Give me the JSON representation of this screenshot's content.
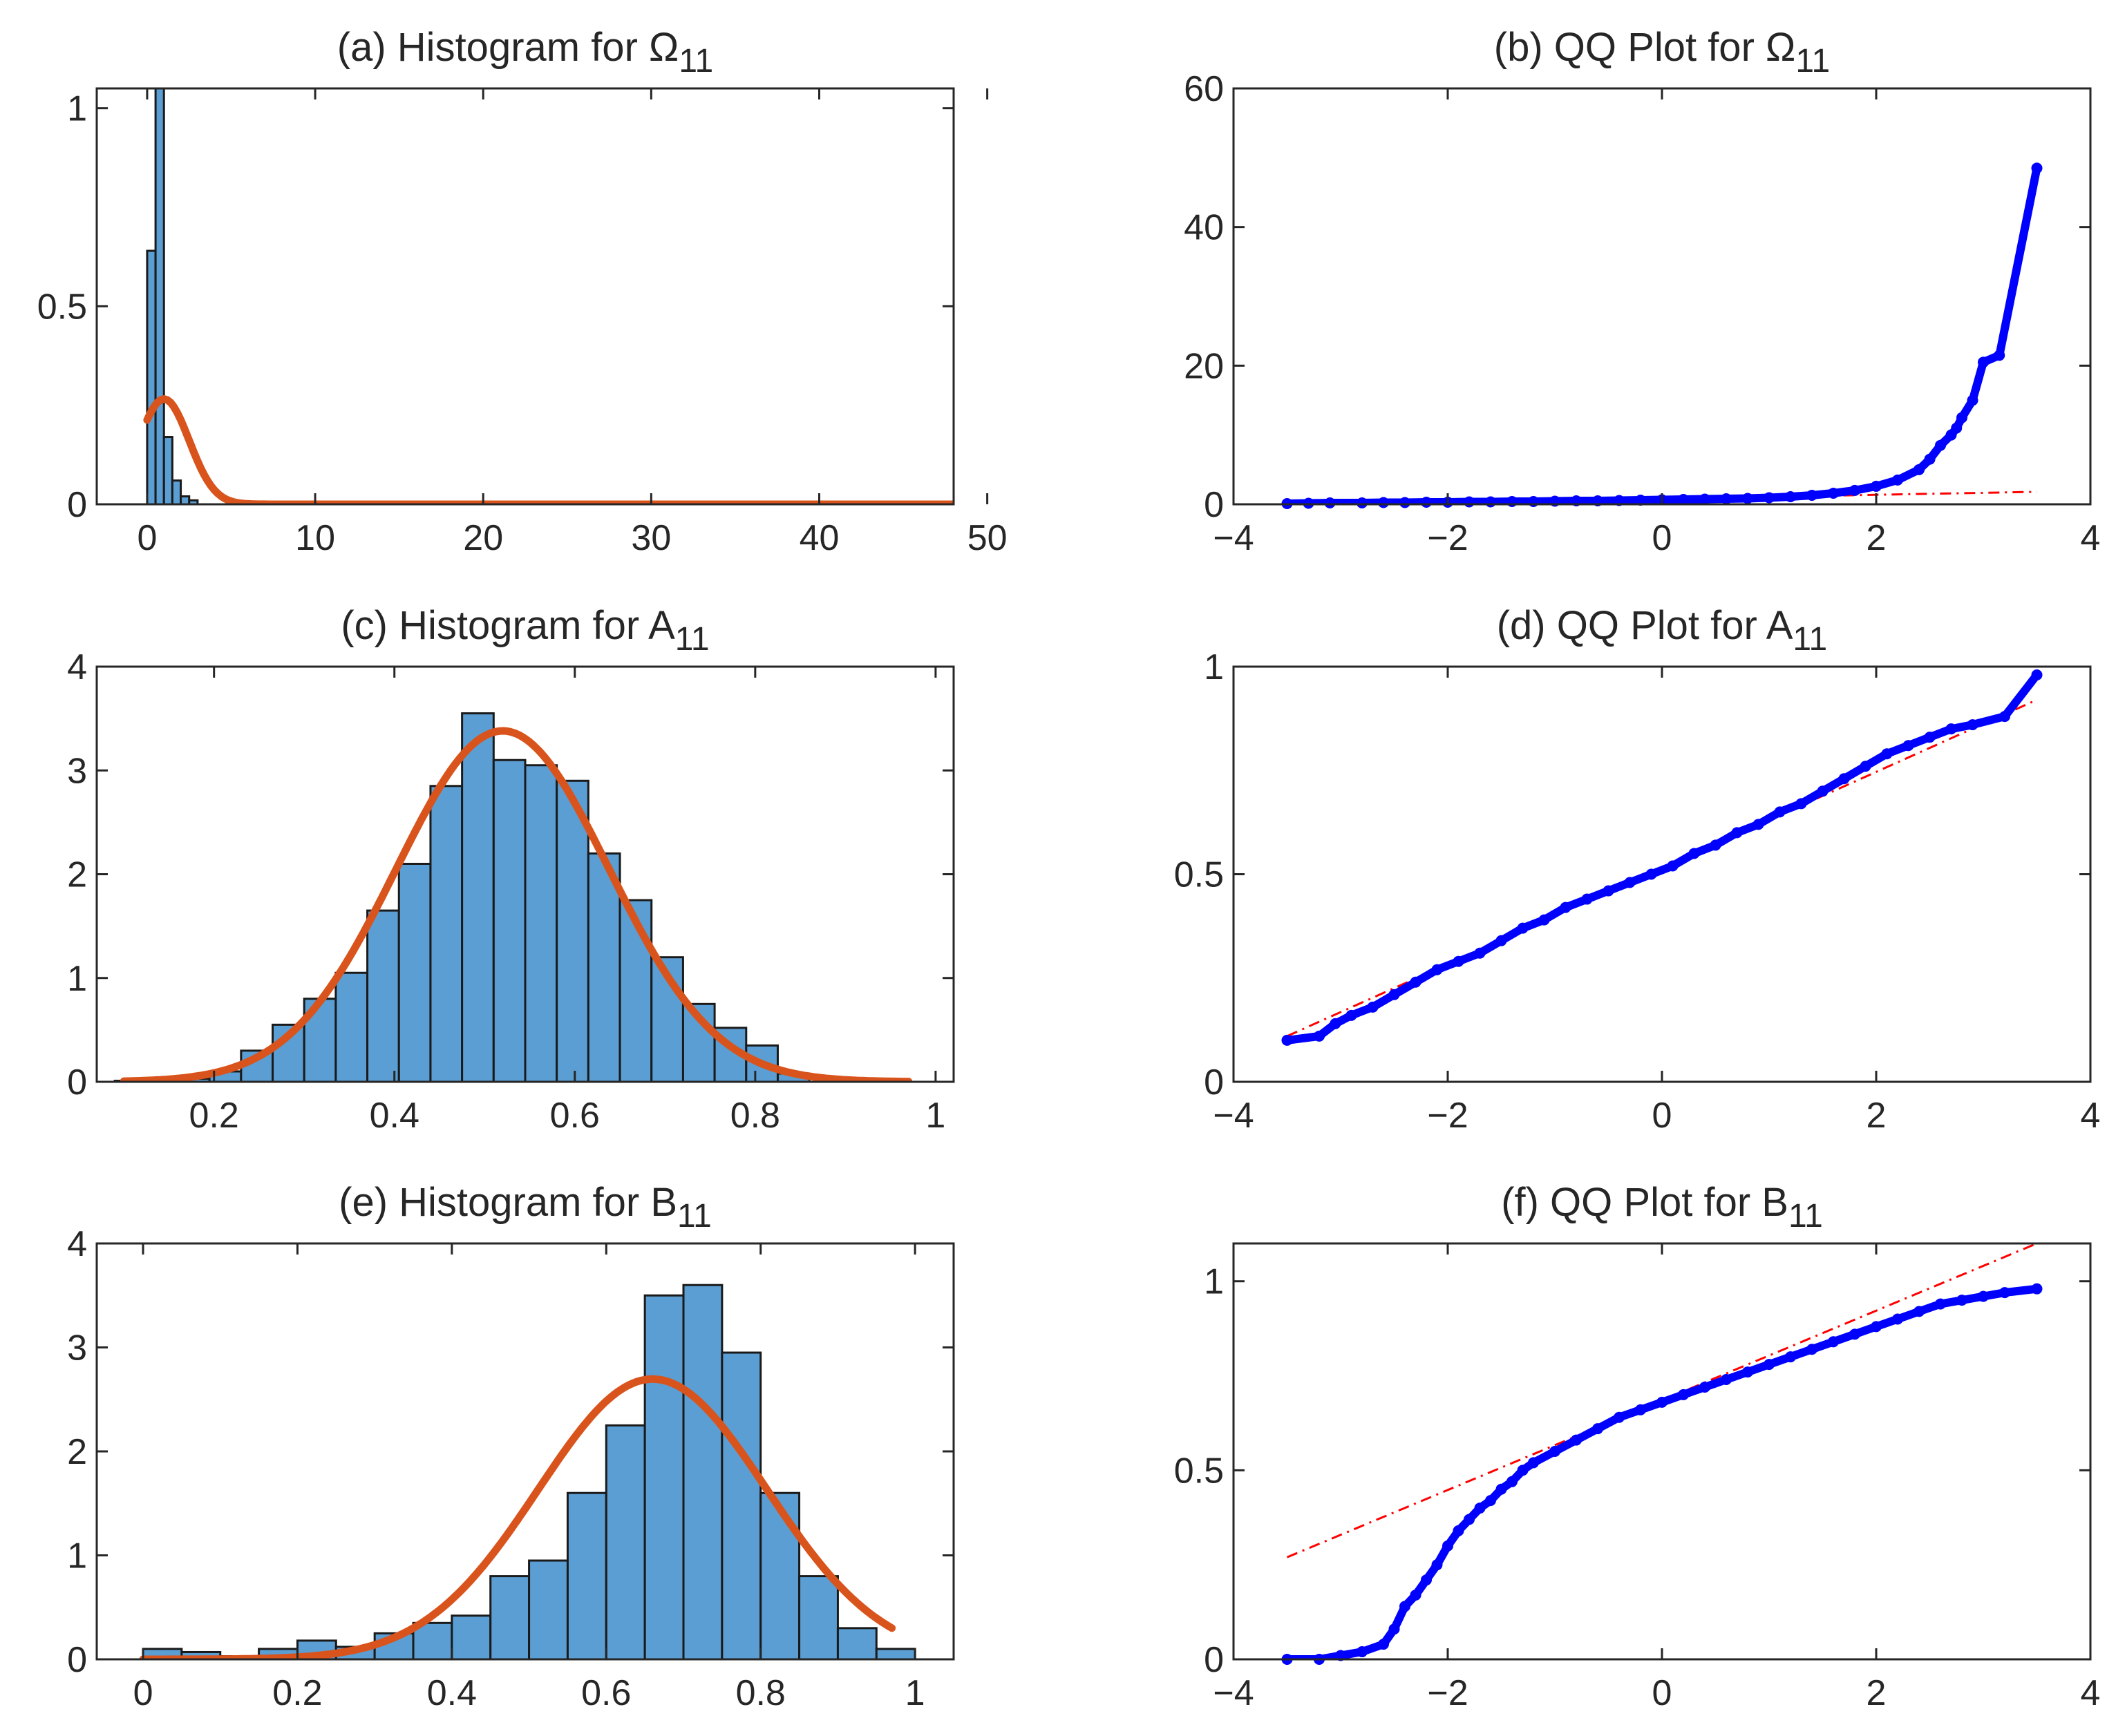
{
  "chart_data": [
    {
      "id": "a",
      "type": "bar",
      "title": "(a) Histogram for Ω",
      "subscript": "11",
      "xlim": [
        -3,
        48
      ],
      "ylim": [
        0,
        1.05
      ],
      "xticks": [
        0,
        10,
        20,
        30,
        40,
        50
      ],
      "xtick_labels": [
        "0",
        "10",
        "20",
        "30",
        "40",
        "50"
      ],
      "yticks": [
        0,
        0.5,
        1
      ],
      "ytick_labels": [
        "0",
        "0.5",
        "1"
      ],
      "bins": {
        "edges": [
          0,
          0.5,
          1.0,
          1.5,
          2.0,
          2.5,
          3.0
        ],
        "values": [
          0.64,
          1.05,
          0.17,
          0.06,
          0.02,
          0.01
        ]
      },
      "curve": {
        "kind": "normal",
        "mean": 1.0,
        "sd": 1.5,
        "x_range": [
          0,
          48
        ]
      },
      "colors": {
        "bar": "#5b9ed3",
        "curve": "#d9541d"
      }
    },
    {
      "id": "b",
      "type": "scatter",
      "title": "(b) QQ Plot for Ω",
      "subscript": "11",
      "xlim": [
        -4,
        4
      ],
      "ylim": [
        0,
        60
      ],
      "xticks": [
        -4,
        -2,
        0,
        2,
        4
      ],
      "xtick_labels": [
        "−4",
        "−2",
        "0",
        "2",
        "4"
      ],
      "yticks": [
        0,
        20,
        40,
        60
      ],
      "ytick_labels": [
        "0",
        "20",
        "40",
        "60"
      ],
      "points": [
        [
          -3.5,
          0.1
        ],
        [
          -3.3,
          0.15
        ],
        [
          -3.1,
          0.2
        ],
        [
          -2.8,
          0.2
        ],
        [
          -2.6,
          0.25
        ],
        [
          -2.4,
          0.25
        ],
        [
          -2.2,
          0.3
        ],
        [
          -2.0,
          0.3
        ],
        [
          -1.8,
          0.35
        ],
        [
          -1.6,
          0.35
        ],
        [
          -1.4,
          0.4
        ],
        [
          -1.2,
          0.4
        ],
        [
          -1.0,
          0.45
        ],
        [
          -0.8,
          0.5
        ],
        [
          -0.6,
          0.5
        ],
        [
          -0.4,
          0.55
        ],
        [
          -0.2,
          0.6
        ],
        [
          0.0,
          0.65
        ],
        [
          0.2,
          0.7
        ],
        [
          0.4,
          0.75
        ],
        [
          0.6,
          0.8
        ],
        [
          0.8,
          0.85
        ],
        [
          1.0,
          0.95
        ],
        [
          1.2,
          1.1
        ],
        [
          1.4,
          1.3
        ],
        [
          1.6,
          1.6
        ],
        [
          1.8,
          2.0
        ],
        [
          2.0,
          2.6
        ],
        [
          2.2,
          3.5
        ],
        [
          2.4,
          5.0
        ],
        [
          2.5,
          6.5
        ],
        [
          2.6,
          8.5
        ],
        [
          2.7,
          10.0
        ],
        [
          2.75,
          11.0
        ],
        [
          2.8,
          12.5
        ],
        [
          2.9,
          15.0
        ],
        [
          3.0,
          20.5
        ],
        [
          3.15,
          21.5
        ],
        [
          3.5,
          48.5
        ]
      ],
      "reference_line": [
        [
          -3.5,
          -0.2
        ],
        [
          3.5,
          1.8
        ]
      ],
      "colors": {
        "point": "#0000ff",
        "line": "#ff0000"
      }
    },
    {
      "id": "c",
      "type": "bar",
      "title": "(c) Histogram for A",
      "subscript": "11",
      "xlim": [
        0.07,
        1.02
      ],
      "ylim": [
        0,
        4
      ],
      "xticks": [
        0.2,
        0.4,
        0.6,
        0.8,
        1
      ],
      "xtick_labels": [
        "0.2",
        "0.4",
        "0.6",
        "0.8",
        "1"
      ],
      "yticks": [
        0,
        1,
        2,
        3,
        4
      ],
      "ytick_labels": [
        "0",
        "1",
        "2",
        "3",
        "4"
      ],
      "bins": {
        "edges": [
          0.09,
          0.125,
          0.16,
          0.195,
          0.23,
          0.265,
          0.3,
          0.335,
          0.37,
          0.405,
          0.44,
          0.475,
          0.51,
          0.545,
          0.58,
          0.615,
          0.65,
          0.685,
          0.72,
          0.755,
          0.79,
          0.825,
          0.86
        ],
        "values": [
          0.01,
          0.01,
          0.03,
          0.1,
          0.3,
          0.55,
          0.8,
          1.05,
          1.65,
          2.1,
          2.85,
          3.55,
          3.1,
          3.05,
          2.9,
          2.2,
          1.75,
          1.2,
          0.75,
          0.52,
          0.35,
          0.08
        ]
      },
      "curve": {
        "kind": "normal",
        "mean": 0.52,
        "sd": 0.118,
        "x_range": [
          0.1,
          0.97
        ]
      },
      "colors": {
        "bar": "#5b9ed3",
        "curve": "#d9541d"
      }
    },
    {
      "id": "d",
      "type": "scatter",
      "title": "(d) QQ Plot for A",
      "subscript": "11",
      "xlim": [
        -4,
        4
      ],
      "ylim": [
        0,
        1
      ],
      "xticks": [
        -4,
        -2,
        0,
        2,
        4
      ],
      "xtick_labels": [
        "−4",
        "−2",
        "0",
        "2",
        "4"
      ],
      "yticks": [
        0,
        0.5,
        1
      ],
      "ytick_labels": [
        "0",
        "0.5",
        "1"
      ],
      "points": [
        [
          -3.5,
          0.1
        ],
        [
          -3.2,
          0.11
        ],
        [
          -3.05,
          0.14
        ],
        [
          -2.9,
          0.16
        ],
        [
          -2.7,
          0.18
        ],
        [
          -2.5,
          0.21
        ],
        [
          -2.3,
          0.24
        ],
        [
          -2.1,
          0.27
        ],
        [
          -1.9,
          0.29
        ],
        [
          -1.7,
          0.31
        ],
        [
          -1.5,
          0.34
        ],
        [
          -1.3,
          0.37
        ],
        [
          -1.1,
          0.39
        ],
        [
          -0.9,
          0.42
        ],
        [
          -0.7,
          0.44
        ],
        [
          -0.5,
          0.46
        ],
        [
          -0.3,
          0.48
        ],
        [
          -0.1,
          0.5
        ],
        [
          0.1,
          0.52
        ],
        [
          0.3,
          0.55
        ],
        [
          0.5,
          0.57
        ],
        [
          0.7,
          0.6
        ],
        [
          0.9,
          0.62
        ],
        [
          1.1,
          0.65
        ],
        [
          1.3,
          0.67
        ],
        [
          1.5,
          0.7
        ],
        [
          1.7,
          0.73
        ],
        [
          1.9,
          0.76
        ],
        [
          2.1,
          0.79
        ],
        [
          2.3,
          0.81
        ],
        [
          2.5,
          0.83
        ],
        [
          2.7,
          0.85
        ],
        [
          2.9,
          0.86
        ],
        [
          3.2,
          0.88
        ],
        [
          3.5,
          0.98
        ]
      ],
      "reference_line": [
        [
          -3.5,
          0.11
        ],
        [
          3.5,
          0.92
        ]
      ],
      "colors": {
        "point": "#0000ff",
        "line": "#ff0000"
      }
    },
    {
      "id": "e",
      "type": "bar",
      "title": "(e) Histogram for B",
      "subscript": "11",
      "xlim": [
        -0.06,
        1.05
      ],
      "ylim": [
        0,
        4
      ],
      "xticks": [
        0,
        0.2,
        0.4,
        0.6,
        0.8,
        1
      ],
      "xtick_labels": [
        "0",
        "0.2",
        "0.4",
        "0.6",
        "0.8",
        "1"
      ],
      "yticks": [
        0,
        1,
        2,
        3,
        4
      ],
      "ytick_labels": [
        "0",
        "1",
        "2",
        "3",
        "4"
      ],
      "bins": {
        "edges": [
          0,
          0.05,
          0.1,
          0.15,
          0.2,
          0.25,
          0.3,
          0.35,
          0.4,
          0.45,
          0.5,
          0.55,
          0.6,
          0.65,
          0.7,
          0.75,
          0.8,
          0.85,
          0.9,
          0.95,
          1.0
        ],
        "values": [
          0.1,
          0.07,
          0.03,
          0.1,
          0.18,
          0.12,
          0.25,
          0.35,
          0.42,
          0.8,
          0.95,
          1.6,
          2.25,
          3.5,
          3.6,
          2.95,
          1.6,
          0.8,
          0.3,
          0.1
        ]
      },
      "curve": {
        "kind": "normal",
        "mean": 0.66,
        "sd": 0.148,
        "x_range": [
          0,
          0.97
        ]
      },
      "colors": {
        "bar": "#5b9ed3",
        "curve": "#d9541d"
      }
    },
    {
      "id": "f",
      "type": "scatter",
      "title": "(f) QQ Plot for B",
      "subscript": "11",
      "xlim": [
        -4,
        4
      ],
      "ylim": [
        0,
        1.1
      ],
      "xticks": [
        -4,
        -2,
        0,
        2,
        4
      ],
      "xtick_labels": [
        "−4",
        "−2",
        "0",
        "2",
        "4"
      ],
      "yticks": [
        0,
        0.5,
        1
      ],
      "ytick_labels": [
        "0",
        "0.5",
        "1"
      ],
      "points": [
        [
          -3.5,
          0.0
        ],
        [
          -3.2,
          0.0
        ],
        [
          -3.0,
          0.01
        ],
        [
          -2.8,
          0.02
        ],
        [
          -2.6,
          0.04
        ],
        [
          -2.5,
          0.08
        ],
        [
          -2.4,
          0.14
        ],
        [
          -2.3,
          0.17
        ],
        [
          -2.2,
          0.21
        ],
        [
          -2.1,
          0.25
        ],
        [
          -2.0,
          0.3
        ],
        [
          -1.9,
          0.34
        ],
        [
          -1.8,
          0.37
        ],
        [
          -1.7,
          0.4
        ],
        [
          -1.6,
          0.42
        ],
        [
          -1.5,
          0.45
        ],
        [
          -1.4,
          0.47
        ],
        [
          -1.3,
          0.5
        ],
        [
          -1.2,
          0.52
        ],
        [
          -1.0,
          0.55
        ],
        [
          -0.8,
          0.58
        ],
        [
          -0.6,
          0.61
        ],
        [
          -0.4,
          0.64
        ],
        [
          -0.2,
          0.66
        ],
        [
          0.0,
          0.68
        ],
        [
          0.2,
          0.7
        ],
        [
          0.4,
          0.72
        ],
        [
          0.6,
          0.74
        ],
        [
          0.8,
          0.76
        ],
        [
          1.0,
          0.78
        ],
        [
          1.2,
          0.8
        ],
        [
          1.4,
          0.82
        ],
        [
          1.6,
          0.84
        ],
        [
          1.8,
          0.86
        ],
        [
          2.0,
          0.88
        ],
        [
          2.2,
          0.9
        ],
        [
          2.4,
          0.92
        ],
        [
          2.6,
          0.94
        ],
        [
          2.8,
          0.95
        ],
        [
          3.0,
          0.96
        ],
        [
          3.2,
          0.97
        ],
        [
          3.5,
          0.98
        ]
      ],
      "reference_line": [
        [
          -3.5,
          0.27
        ],
        [
          3.5,
          1.1
        ]
      ],
      "colors": {
        "point": "#0000ff",
        "line": "#ff0000"
      }
    }
  ]
}
